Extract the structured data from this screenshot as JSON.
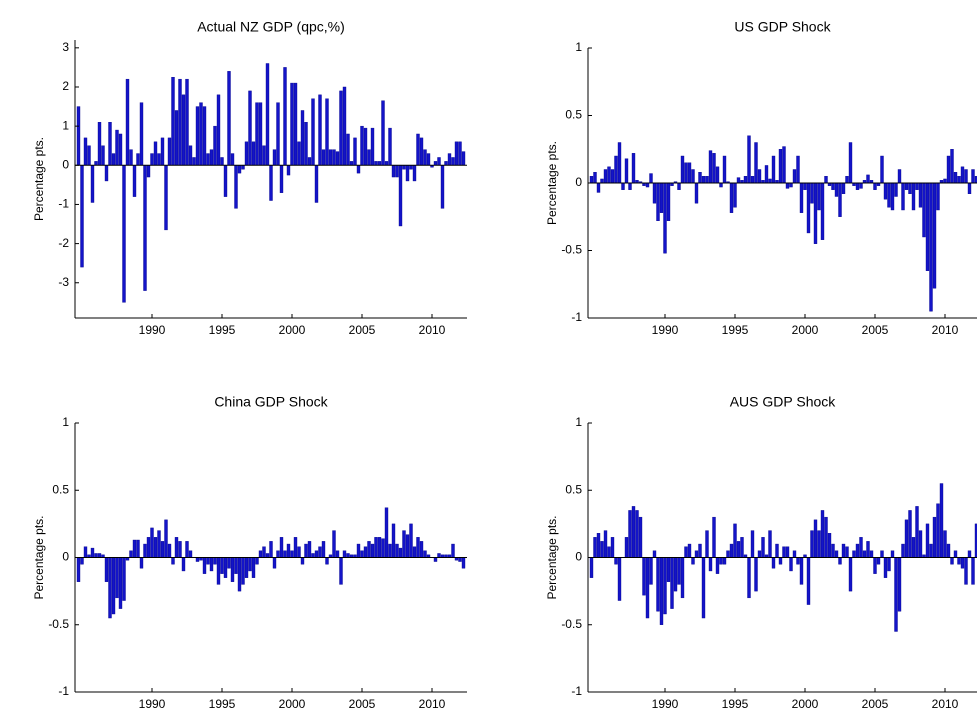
{
  "chart_data": [
    {
      "type": "bar",
      "title": "Actual NZ GDP (qpc,%)",
      "ylabel": "Percentage pts.",
      "color": "#1414c8",
      "xlim": [
        1984.5,
        2012.5
      ],
      "xticks": [
        1990,
        1995,
        2000,
        2005,
        2010
      ],
      "ylim": [
        -3.9,
        3.2
      ],
      "yticks": [
        -3,
        -2,
        -1,
        0,
        1,
        2,
        3
      ],
      "x": [
        1984.75,
        1985,
        1985.25,
        1985.5,
        1985.75,
        1986,
        1986.25,
        1986.5,
        1986.75,
        1987,
        1987.25,
        1987.5,
        1987.75,
        1988,
        1988.25,
        1988.5,
        1988.75,
        1989,
        1989.25,
        1989.5,
        1989.75,
        1990,
        1990.25,
        1990.5,
        1990.75,
        1991,
        1991.25,
        1991.5,
        1991.75,
        1992,
        1992.25,
        1992.5,
        1992.75,
        1993,
        1993.25,
        1993.5,
        1993.75,
        1994,
        1994.25,
        1994.5,
        1994.75,
        1995,
        1995.25,
        1995.5,
        1995.75,
        1996,
        1996.25,
        1996.5,
        1996.75,
        1997,
        1997.25,
        1997.5,
        1997.75,
        1998,
        1998.25,
        1998.5,
        1998.75,
        1999,
        1999.25,
        1999.5,
        1999.75,
        2000,
        2000.25,
        2000.5,
        2000.75,
        2001,
        2001.25,
        2001.5,
        2001.75,
        2002,
        2002.25,
        2002.5,
        2002.75,
        2003,
        2003.25,
        2003.5,
        2003.75,
        2004,
        2004.25,
        2004.5,
        2004.75,
        2005,
        2005.25,
        2005.5,
        2005.75,
        2006,
        2006.25,
        2006.5,
        2006.75,
        2007,
        2007.25,
        2007.5,
        2007.75,
        2008,
        2008.25,
        2008.5,
        2008.75,
        2009,
        2009.25,
        2009.5,
        2009.75,
        2010,
        2010.25,
        2010.5,
        2010.75,
        2011,
        2011.25,
        2011.5,
        2011.75,
        2012,
        2012.25
      ],
      "values": [
        1.5,
        -2.6,
        0.7,
        0.5,
        -0.95,
        0.1,
        1.1,
        0.5,
        -0.4,
        1.1,
        0.3,
        0.9,
        0.8,
        -3.5,
        2.2,
        0.4,
        -0.8,
        0.3,
        1.6,
        -3.2,
        -0.3,
        0.3,
        0.6,
        0.3,
        0.7,
        -1.65,
        0.7,
        2.25,
        1.4,
        2.2,
        1.8,
        2.2,
        0.5,
        0.2,
        1.5,
        1.6,
        1.5,
        0.3,
        0.4,
        1.0,
        1.8,
        0.2,
        -0.8,
        2.4,
        0.3,
        -1.1,
        -0.2,
        -0.1,
        0.6,
        1.9,
        0.6,
        1.6,
        1.6,
        0.5,
        2.6,
        -0.9,
        0.4,
        1.6,
        -0.7,
        2.5,
        -0.25,
        2.1,
        2.1,
        0.6,
        1.4,
        1.1,
        0.2,
        1.7,
        -0.95,
        1.8,
        0.4,
        1.7,
        0.4,
        0.4,
        0.35,
        1.9,
        2.0,
        0.8,
        0.1,
        0.7,
        -0.2,
        1.0,
        0.95,
        0.4,
        0.95,
        0.1,
        0.1,
        1.65,
        0.1,
        0.95,
        -0.3,
        -0.3,
        -1.55,
        -0.1,
        -0.4,
        -0.1,
        -0.4,
        0.8,
        0.7,
        0.4,
        0.3,
        -0.05,
        0.1,
        0.2,
        -1.1,
        0.1,
        0.3,
        0.2,
        0.6,
        0.6,
        0.35
      ]
    },
    {
      "type": "bar",
      "title": "US GDP Shock",
      "ylabel": "Percentage pts.",
      "color": "#1414c8",
      "xlim": [
        1984.5,
        2012.5
      ],
      "xticks": [
        1990,
        1995,
        2000,
        2005,
        2010
      ],
      "ylim": [
        -1,
        1
      ],
      "yticks": [
        -1,
        -0.5,
        0,
        0.5,
        1
      ],
      "x": [
        1984.75,
        1985,
        1985.25,
        1985.5,
        1985.75,
        1986,
        1986.25,
        1986.5,
        1986.75,
        1987,
        1987.25,
        1987.5,
        1987.75,
        1988,
        1988.25,
        1988.5,
        1988.75,
        1989,
        1989.25,
        1989.5,
        1989.75,
        1990,
        1990.25,
        1990.5,
        1990.75,
        1991,
        1991.25,
        1991.5,
        1991.75,
        1992,
        1992.25,
        1992.5,
        1992.75,
        1993,
        1993.25,
        1993.5,
        1993.75,
        1994,
        1994.25,
        1994.5,
        1994.75,
        1995,
        1995.25,
        1995.5,
        1995.75,
        1996,
        1996.25,
        1996.5,
        1996.75,
        1997,
        1997.25,
        1997.5,
        1997.75,
        1998,
        1998.25,
        1998.5,
        1998.75,
        1999,
        1999.25,
        1999.5,
        1999.75,
        2000,
        2000.25,
        2000.5,
        2000.75,
        2001,
        2001.25,
        2001.5,
        2001.75,
        2002,
        2002.25,
        2002.5,
        2002.75,
        2003,
        2003.25,
        2003.5,
        2003.75,
        2004,
        2004.25,
        2004.5,
        2004.75,
        2005,
        2005.25,
        2005.5,
        2005.75,
        2006,
        2006.25,
        2006.5,
        2006.75,
        2007,
        2007.25,
        2007.5,
        2007.75,
        2008,
        2008.25,
        2008.5,
        2008.75,
        2009,
        2009.25,
        2009.5,
        2009.75,
        2010,
        2010.25,
        2010.5,
        2010.75,
        2011,
        2011.25,
        2011.5,
        2011.75,
        2012,
        2012.25
      ],
      "values": [
        0.05,
        0.08,
        -0.07,
        0.03,
        0.1,
        0.12,
        0.1,
        0.2,
        0.3,
        -0.05,
        0.18,
        -0.05,
        0.22,
        0.02,
        0.01,
        -0.02,
        -0.03,
        0.07,
        -0.15,
        -0.28,
        -0.22,
        -0.52,
        -0.28,
        -0.02,
        0.01,
        -0.05,
        0.2,
        0.15,
        0.15,
        0.1,
        -0.15,
        0.08,
        0.05,
        0.05,
        0.24,
        0.22,
        0.12,
        -0.03,
        0.2,
        0.01,
        -0.22,
        -0.18,
        0.04,
        0.02,
        0.05,
        0.35,
        0.05,
        0.3,
        0.1,
        0.02,
        0.13,
        0.03,
        0.2,
        0.02,
        0.25,
        0.27,
        -0.04,
        -0.03,
        0.1,
        0.2,
        -0.22,
        -0.05,
        -0.37,
        -0.15,
        -0.45,
        -0.2,
        -0.42,
        0.05,
        -0.02,
        -0.05,
        -0.1,
        -0.25,
        -0.08,
        0.05,
        0.3,
        -0.02,
        -0.05,
        -0.04,
        0.02,
        0.06,
        0.02,
        -0.05,
        -0.02,
        0.2,
        -0.12,
        -0.18,
        -0.2,
        -0.1,
        0.1,
        -0.2,
        -0.05,
        -0.08,
        -0.2,
        -0.05,
        -0.18,
        -0.4,
        -0.65,
        -0.95,
        -0.78,
        -0.2,
        0.02,
        0.03,
        0.2,
        0.25,
        0.08,
        0.05,
        0.12,
        0.1,
        -0.08,
        0.1,
        0.05
      ]
    },
    {
      "type": "bar",
      "title": "China GDP Shock",
      "ylabel": "Percentage pts.",
      "color": "#1414c8",
      "xlim": [
        1984.5,
        2012.5
      ],
      "xticks": [
        1990,
        1995,
        2000,
        2005,
        2010
      ],
      "ylim": [
        -1,
        1
      ],
      "yticks": [
        -1,
        -0.5,
        0,
        0.5,
        1
      ],
      "x": [
        1984.75,
        1985,
        1985.25,
        1985.5,
        1985.75,
        1986,
        1986.25,
        1986.5,
        1986.75,
        1987,
        1987.25,
        1987.5,
        1987.75,
        1988,
        1988.25,
        1988.5,
        1988.75,
        1989,
        1989.25,
        1989.5,
        1989.75,
        1990,
        1990.25,
        1990.5,
        1990.75,
        1991,
        1991.25,
        1991.5,
        1991.75,
        1992,
        1992.25,
        1992.5,
        1992.75,
        1993,
        1993.25,
        1993.5,
        1993.75,
        1994,
        1994.25,
        1994.5,
        1994.75,
        1995,
        1995.25,
        1995.5,
        1995.75,
        1996,
        1996.25,
        1996.5,
        1996.75,
        1997,
        1997.25,
        1997.5,
        1997.75,
        1998,
        1998.25,
        1998.5,
        1998.75,
        1999,
        1999.25,
        1999.5,
        1999.75,
        2000,
        2000.25,
        2000.5,
        2000.75,
        2001,
        2001.25,
        2001.5,
        2001.75,
        2002,
        2002.25,
        2002.5,
        2002.75,
        2003,
        2003.25,
        2003.5,
        2003.75,
        2004,
        2004.25,
        2004.5,
        2004.75,
        2005,
        2005.25,
        2005.5,
        2005.75,
        2006,
        2006.25,
        2006.5,
        2006.75,
        2007,
        2007.25,
        2007.5,
        2007.75,
        2008,
        2008.25,
        2008.5,
        2008.75,
        2009,
        2009.25,
        2009.5,
        2009.75,
        2010,
        2010.25,
        2010.5,
        2010.75,
        2011,
        2011.25,
        2011.5,
        2011.75,
        2012,
        2012.25
      ],
      "values": [
        -0.18,
        -0.05,
        0.08,
        0.02,
        0.07,
        0.03,
        0.03,
        0.02,
        -0.18,
        -0.45,
        -0.42,
        -0.3,
        -0.38,
        -0.32,
        -0.02,
        0.05,
        0.13,
        0.13,
        -0.08,
        0.1,
        0.15,
        0.22,
        0.15,
        0.2,
        0.12,
        0.28,
        0.1,
        -0.05,
        0.15,
        0.12,
        -0.1,
        0.12,
        0.05,
        0.0,
        -0.03,
        -0.02,
        -0.12,
        -0.05,
        -0.1,
        -0.05,
        -0.2,
        -0.12,
        -0.15,
        -0.08,
        -0.18,
        -0.12,
        -0.25,
        -0.2,
        -0.15,
        -0.1,
        -0.15,
        -0.05,
        0.05,
        0.08,
        0.03,
        0.12,
        -0.08,
        0.05,
        0.15,
        0.05,
        0.1,
        0.05,
        0.15,
        0.08,
        -0.05,
        0.1,
        0.12,
        0.03,
        0.05,
        0.08,
        0.12,
        -0.05,
        0.02,
        0.2,
        0.05,
        -0.2,
        0.05,
        0.03,
        0.02,
        0.02,
        0.1,
        0.05,
        0.08,
        0.12,
        0.1,
        0.15,
        0.15,
        0.14,
        0.37,
        0.1,
        0.25,
        0.1,
        0.07,
        0.2,
        0.17,
        0.25,
        0.08,
        0.15,
        0.12,
        0.05,
        0.02,
        0.0,
        -0.03,
        0.03,
        0.02,
        0.02,
        0.02,
        0.1,
        -0.02,
        -0.03,
        -0.08
      ]
    },
    {
      "type": "bar",
      "title": "AUS GDP Shock",
      "ylabel": "Percentage pts.",
      "color": "#1414c8",
      "xlim": [
        1984.5,
        2012.5
      ],
      "xticks": [
        1990,
        1995,
        2000,
        2005,
        2010
      ],
      "ylim": [
        -1,
        1
      ],
      "yticks": [
        -1,
        -0.5,
        0,
        0.5,
        1
      ],
      "x": [
        1984.75,
        1985,
        1985.25,
        1985.5,
        1985.75,
        1986,
        1986.25,
        1986.5,
        1986.75,
        1987,
        1987.25,
        1987.5,
        1987.75,
        1988,
        1988.25,
        1988.5,
        1988.75,
        1989,
        1989.25,
        1989.5,
        1989.75,
        1990,
        1990.25,
        1990.5,
        1990.75,
        1991,
        1991.25,
        1991.5,
        1991.75,
        1992,
        1992.25,
        1992.5,
        1992.75,
        1993,
        1993.25,
        1993.5,
        1993.75,
        1994,
        1994.25,
        1994.5,
        1994.75,
        1995,
        1995.25,
        1995.5,
        1995.75,
        1996,
        1996.25,
        1996.5,
        1996.75,
        1997,
        1997.25,
        1997.5,
        1997.75,
        1998,
        1998.25,
        1998.5,
        1998.75,
        1999,
        1999.25,
        1999.5,
        1999.75,
        2000,
        2000.25,
        2000.5,
        2000.75,
        2001,
        2001.25,
        2001.5,
        2001.75,
        2002,
        2002.25,
        2002.5,
        2002.75,
        2003,
        2003.25,
        2003.5,
        2003.75,
        2004,
        2004.25,
        2004.5,
        2004.75,
        2005,
        2005.25,
        2005.5,
        2005.75,
        2006,
        2006.25,
        2006.5,
        2006.75,
        2007,
        2007.25,
        2007.5,
        2007.75,
        2008,
        2008.25,
        2008.5,
        2008.75,
        2009,
        2009.25,
        2009.5,
        2009.75,
        2010,
        2010.25,
        2010.5,
        2010.75,
        2011,
        2011.25,
        2011.5,
        2011.75,
        2012,
        2012.25
      ],
      "values": [
        -0.15,
        0.15,
        0.18,
        0.12,
        0.2,
        0.08,
        0.15,
        -0.05,
        -0.32,
        0.0,
        0.15,
        0.35,
        0.38,
        0.35,
        0.3,
        -0.28,
        -0.45,
        -0.2,
        0.05,
        -0.4,
        -0.5,
        -0.42,
        -0.18,
        -0.38,
        -0.25,
        -0.2,
        -0.3,
        0.08,
        0.1,
        -0.05,
        0.05,
        0.1,
        -0.45,
        0.2,
        -0.1,
        0.3,
        -0.12,
        -0.05,
        -0.05,
        0.05,
        0.1,
        0.25,
        0.12,
        0.15,
        0.02,
        -0.3,
        0.2,
        -0.25,
        0.05,
        0.15,
        0.02,
        0.2,
        -0.08,
        0.1,
        -0.05,
        0.08,
        0.08,
        -0.1,
        0.05,
        -0.05,
        -0.2,
        0.02,
        -0.35,
        0.2,
        0.28,
        0.2,
        0.35,
        0.3,
        0.18,
        0.1,
        0.05,
        -0.05,
        0.1,
        0.08,
        -0.25,
        0.05,
        0.1,
        0.15,
        0.05,
        0.12,
        0.05,
        -0.12,
        -0.05,
        0.05,
        -0.15,
        -0.1,
        0.05,
        -0.55,
        -0.4,
        0.1,
        0.28,
        0.35,
        0.15,
        0.38,
        0.2,
        0.02,
        0.25,
        0.1,
        0.3,
        0.4,
        0.55,
        0.2,
        0.1,
        -0.05,
        0.05,
        -0.05,
        -0.08,
        -0.2,
        0.05,
        -0.2,
        0.25
      ]
    }
  ]
}
